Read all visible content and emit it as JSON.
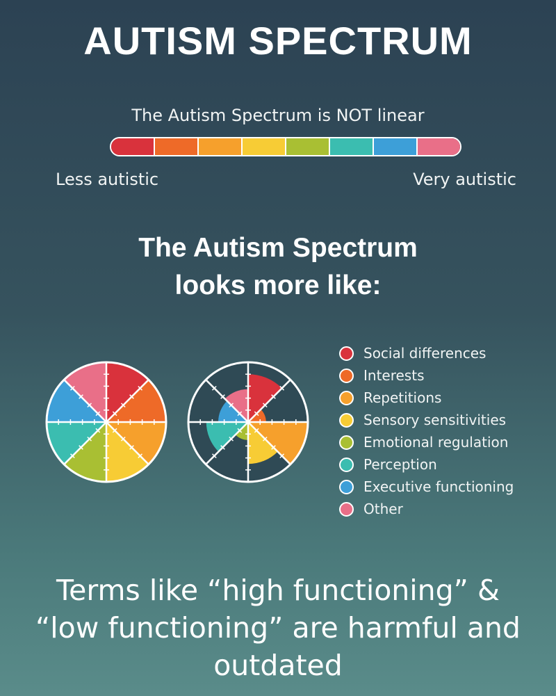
{
  "title": "AUTISM SPECTRUM",
  "linear": {
    "caption": "The Autism Spectrum is NOT linear",
    "left_label": "Less autistic",
    "right_label": "Very autistic",
    "colors": [
      "#d9323c",
      "#ee6a28",
      "#f6a02c",
      "#f7cc35",
      "#a9bf33",
      "#3bbdb0",
      "#3d9fd8",
      "#e96f88"
    ]
  },
  "subtitle": {
    "line1": "The Autism Spectrum",
    "line2": "looks more like:"
  },
  "legend": [
    {
      "label": "Social differences",
      "color": "#d9323c"
    },
    {
      "label": "Interests",
      "color": "#ee6a28"
    },
    {
      "label": "Repetitions",
      "color": "#f6a02c"
    },
    {
      "label": "Sensory sensitivities",
      "color": "#f7cc35"
    },
    {
      "label": "Emotional regulation",
      "color": "#a9bf33"
    },
    {
      "label": "Perception",
      "color": "#3bbdb0"
    },
    {
      "label": "Executive functioning",
      "color": "#3d9fd8"
    },
    {
      "label": "Other",
      "color": "#e96f88"
    }
  ],
  "wheels": [
    {
      "levels": [
        1,
        1,
        1,
        1,
        1,
        1,
        1,
        1
      ]
    },
    {
      "levels": [
        0.8,
        0.3,
        1,
        0.7,
        0.3,
        0.7,
        0.5,
        0.55
      ]
    }
  ],
  "footer": {
    "line1": "Terms like “high functioning” &",
    "line2": "“low functioning” are harmful and",
    "line3": "outdated"
  }
}
